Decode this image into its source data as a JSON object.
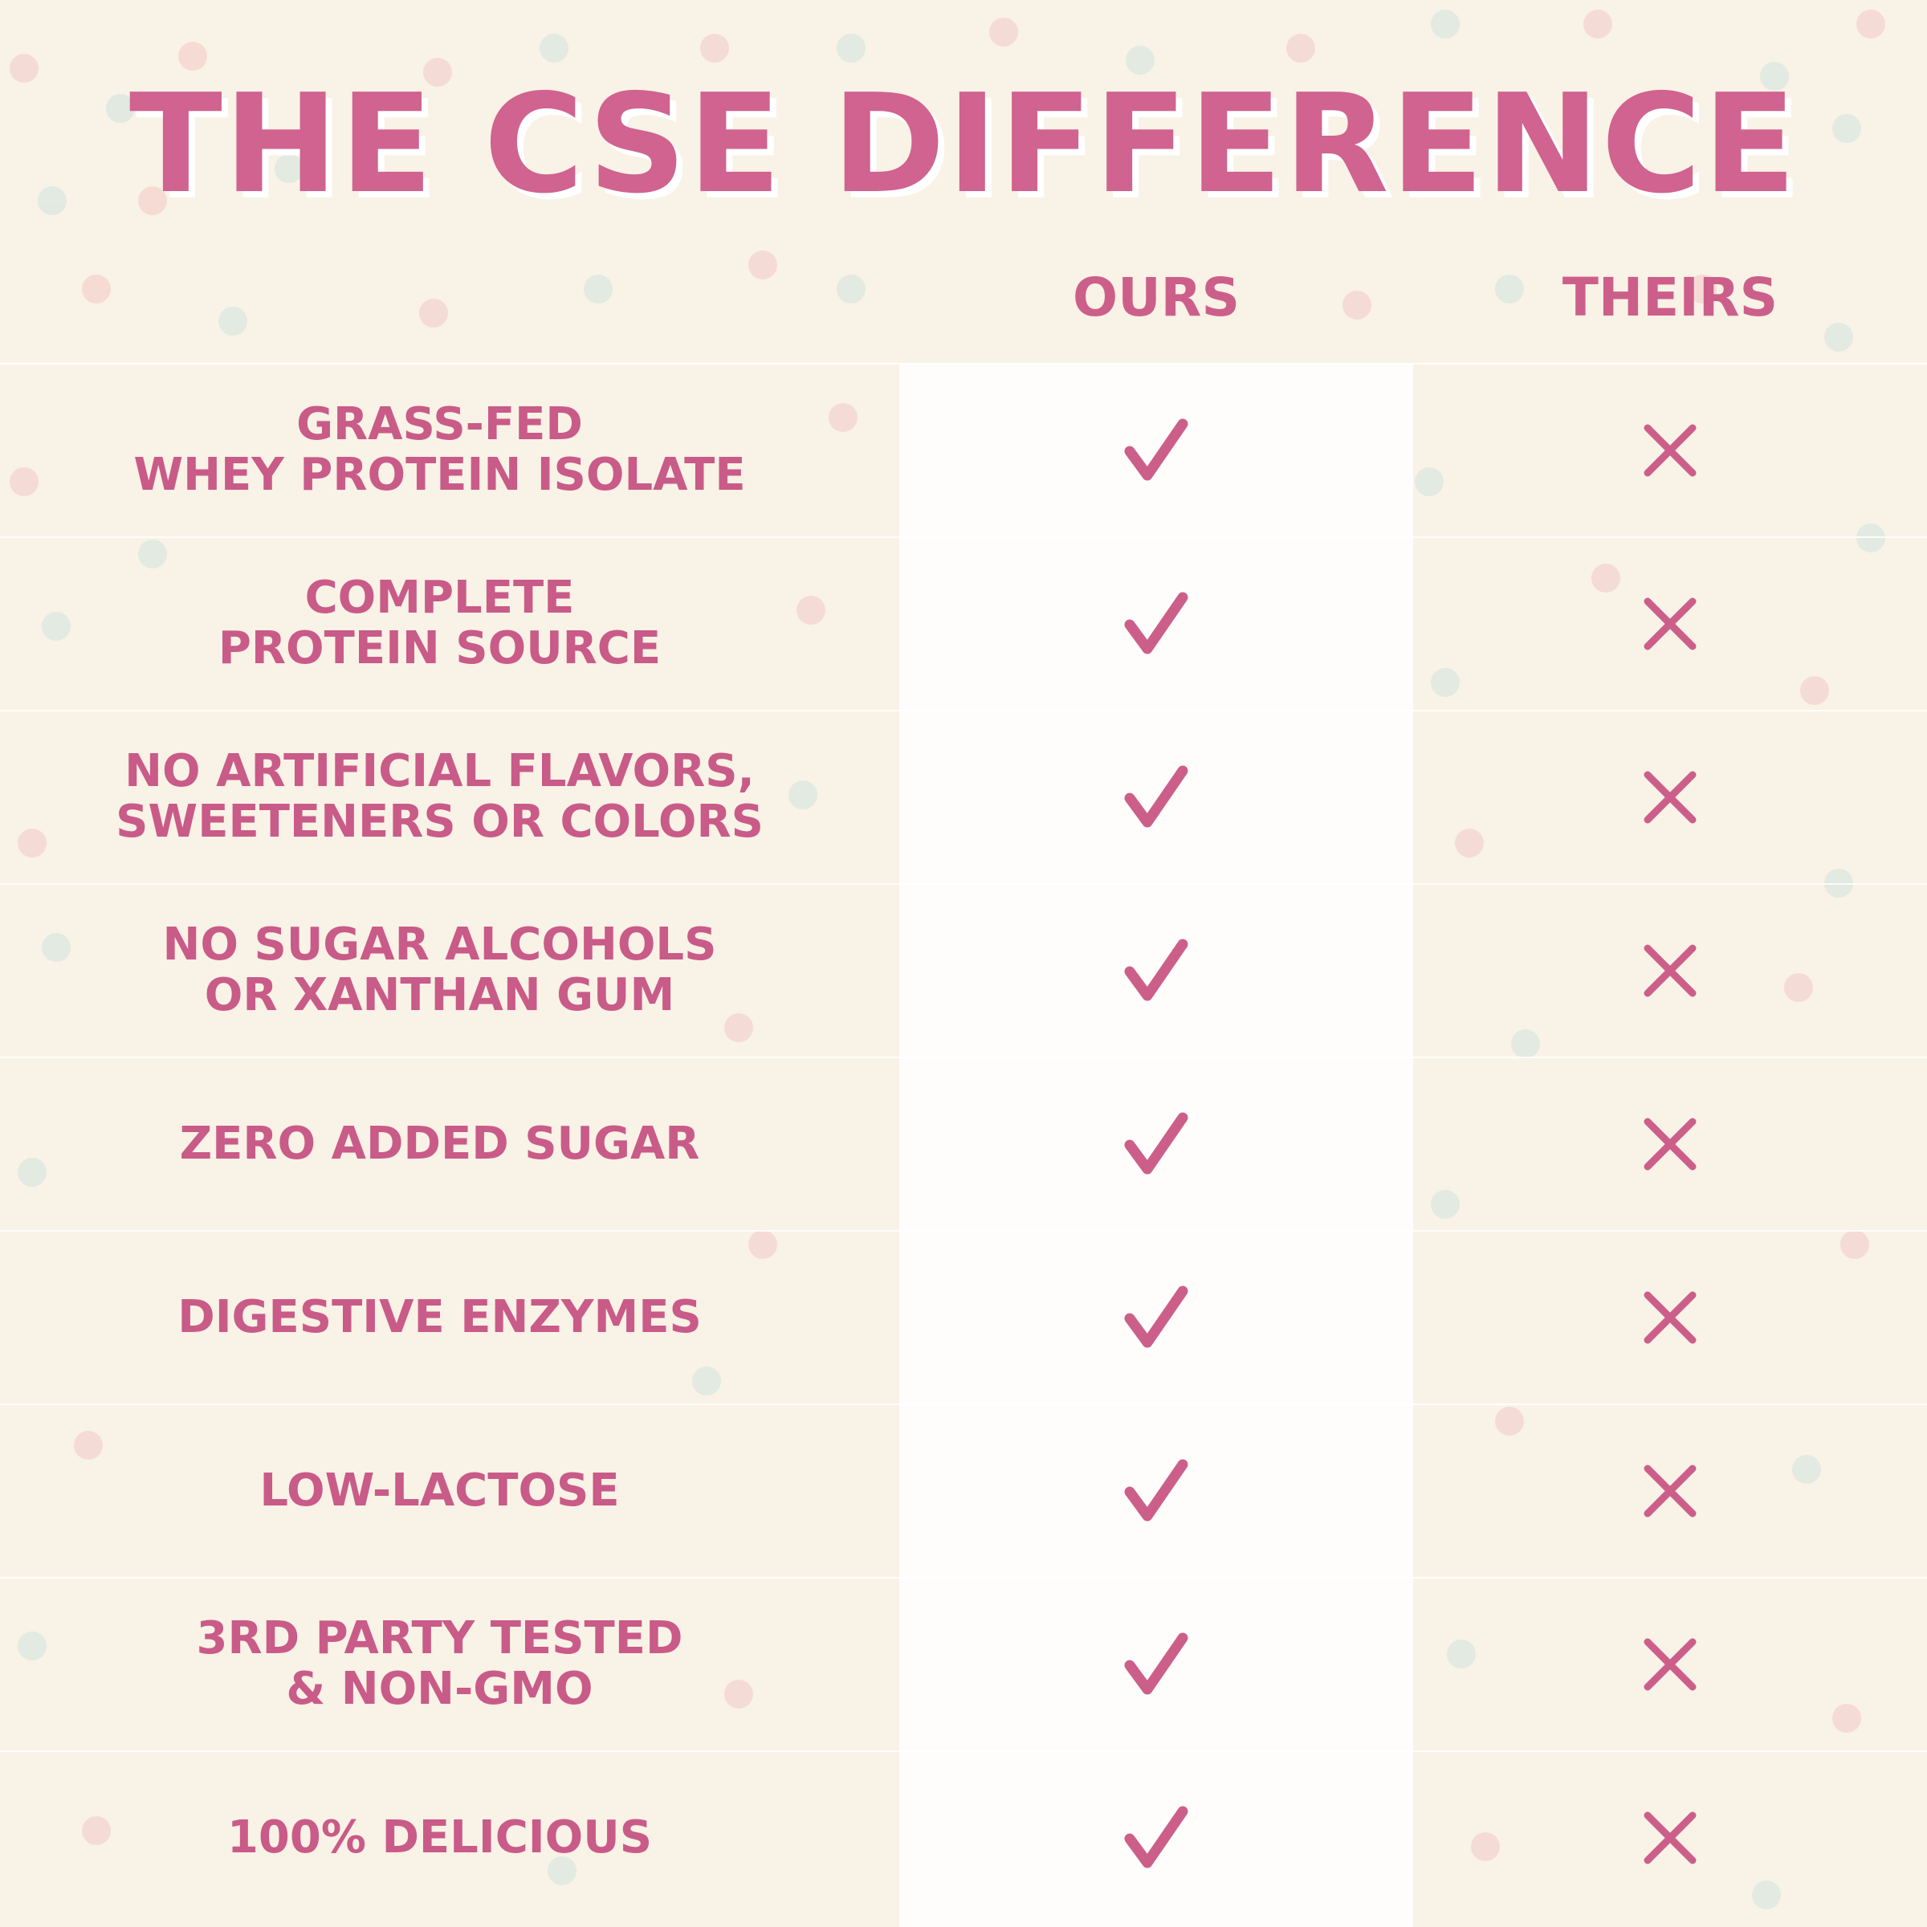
{
  "title": "THE CSE DIFFERENCE",
  "columns": {
    "ours": "OURS",
    "theirs": "THEIRS"
  },
  "colors": {
    "accent": "#cc5f8a",
    "background": "#f9f2e6",
    "dot_pink": "#f3c9c6",
    "dot_teal": "#cfe3de"
  },
  "rows": [
    {
      "feature": "GRASS-FED\nWHEY PROTEIN ISOLATE",
      "ours": "check-icon",
      "theirs": "x-icon"
    },
    {
      "feature": "COMPLETE\nPROTEIN SOURCE",
      "ours": "check-icon",
      "theirs": "x-icon"
    },
    {
      "feature": "NO ARTIFICIAL FLAVORS,\nSWEETENERS OR COLORS",
      "ours": "check-icon",
      "theirs": "x-icon"
    },
    {
      "feature": "NO SUGAR ALCOHOLS\nOR XANTHAN GUM",
      "ours": "check-icon",
      "theirs": "x-icon"
    },
    {
      "feature": "ZERO ADDED SUGAR",
      "ours": "check-icon",
      "theirs": "x-icon"
    },
    {
      "feature": "DIGESTIVE ENZYMES",
      "ours": "check-icon",
      "theirs": "x-icon"
    },
    {
      "feature": "LOW-LACTOSE",
      "ours": "check-icon",
      "theirs": "x-icon"
    },
    {
      "feature": "3RD PARTY TESTED\n& NON-GMO",
      "ours": "check-icon",
      "theirs": "x-icon"
    },
    {
      "feature": "100% DELICIOUS",
      "ours": "check-icon",
      "theirs": "x-icon"
    }
  ]
}
